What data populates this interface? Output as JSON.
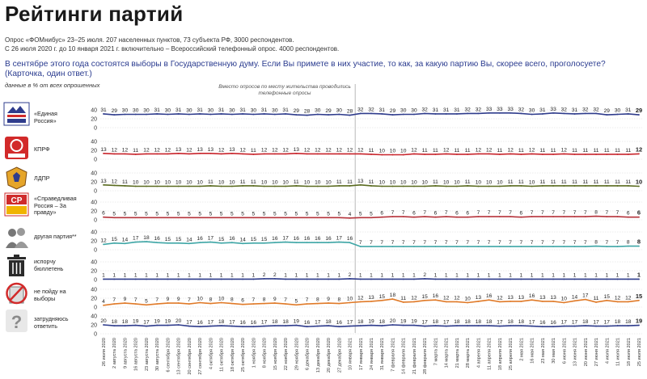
{
  "header": {
    "title": "Рейтинги партий",
    "sub1": "Опрос «ФОМнибус» 23–25 июля. 207 населенных пунктов, 73 субъекта РФ, 3000 респондентов.",
    "sub2": "С 26 июля 2020 г. до 10 января 2021 г. включительно – Всероссийский телефонный опрос. 4000 респондентов.",
    "question": "В сентябре этого года состоятся выборы в Государственную думу. Если Вы примете в них участие, то как, за какую партию Вы, скорее всего, проголосуете? (Карточка, один ответ.)",
    "unit_note": "данные в % от всех опрошенных",
    "method_note": "Вместо опросов по месту жительства проводились телефонные опросы"
  },
  "parties": [
    {
      "label": "«Единая Россия»",
      "icon": "united-russia-logo-icon"
    },
    {
      "label": "КПРФ",
      "icon": "kprf-logo-icon"
    },
    {
      "label": "ЛДПР",
      "icon": "ldpr-logo-icon"
    },
    {
      "label": "«Справедливая Россия – За правду»",
      "icon": "just-russia-logo-icon"
    },
    {
      "label": "другая партия**",
      "icon": "people-icon"
    },
    {
      "label": "испорчу бюллетень",
      "icon": "trash-bin-icon"
    },
    {
      "label": "не пойду на выборы",
      "icon": "no-voting-icon"
    },
    {
      "label": "затрудняюсь ответить",
      "icon": "question-icon"
    }
  ],
  "chart_data": {
    "type": "line",
    "y_ticks": [
      0,
      20,
      40
    ],
    "ylim": [
      0,
      40
    ],
    "x": [
      "26 июля 2020",
      "2 августа 2020",
      "9 августа 2020",
      "16 августа 2020",
      "23 августа 2020",
      "30 августа 2020",
      "6 сентября 2020",
      "13 сентября 2020",
      "20 сентября 2020",
      "27 сентября 2020",
      "4 октября 2020",
      "11 октября 2020",
      "18 октября 2020",
      "25 октября 2020",
      "1 ноября 2020",
      "8 ноября 2020",
      "15 ноября 2020",
      "22 ноября 2020",
      "29 ноября 2020",
      "6 декабря 2020",
      "13 декабря 2020",
      "20 декабря 2020",
      "27 декабря 2020",
      "10 января 2021",
      "17 января 2021",
      "24 января 2021",
      "31 января 2021",
      "7 февраля 2021",
      "14 февраля 2021",
      "21 февраля 2021",
      "28 февраля 2021",
      "7 марта 2021",
      "14 марта 2021",
      "21 марта 2021",
      "28 марта 2021",
      "4 апреля 2021",
      "11 апреля 2021",
      "18 апреля 2021",
      "25 апреля 2021",
      "2 мая 2021",
      "16 мая 2021",
      "23 мая 2021",
      "30 мая 2021",
      "6 июня 2021",
      "13 июня 2021",
      "20 июня 2021",
      "27 июня 2021",
      "4 июля 2021",
      "11 июля 2021",
      "18 июля 2021",
      "25 июля 2021"
    ],
    "series": [
      {
        "name": "«Единая Россия»",
        "color": "#2f3c8c",
        "values": [
          31,
          29,
          30,
          30,
          30,
          31,
          30,
          31,
          30,
          31,
          30,
          31,
          30,
          31,
          30,
          31,
          30,
          31,
          29,
          28,
          30,
          29,
          30,
          28,
          32,
          32,
          31,
          29,
          30,
          30,
          32,
          31,
          31,
          31,
          32,
          32,
          33,
          33,
          33,
          32,
          30,
          31,
          33,
          32,
          31,
          32,
          32,
          29,
          30,
          31,
          29
        ]
      },
      {
        "name": "КПРФ",
        "color": "#c8242b",
        "values": [
          13,
          12,
          12,
          11,
          12,
          12,
          12,
          13,
          12,
          13,
          13,
          12,
          13,
          12,
          11,
          12,
          12,
          12,
          13,
          12,
          12,
          12,
          12,
          12,
          12,
          11,
          10,
          10,
          10,
          12,
          11,
          11,
          12,
          11,
          11,
          12,
          12,
          11,
          12,
          11,
          12,
          11,
          11,
          12,
          11,
          11,
          11,
          11,
          11,
          11,
          12
        ]
      },
      {
        "name": "ЛДПР",
        "color": "#5a6b1f",
        "values": [
          13,
          12,
          11,
          10,
          10,
          10,
          10,
          10,
          10,
          10,
          11,
          10,
          10,
          11,
          11,
          10,
          10,
          10,
          11,
          10,
          10,
          10,
          11,
          11,
          13,
          11,
          10,
          10,
          10,
          10,
          10,
          11,
          10,
          10,
          11,
          10,
          10,
          10,
          11,
          11,
          10,
          11,
          11,
          11,
          11,
          11,
          11,
          11,
          11,
          11,
          10
        ]
      },
      {
        "name": "«Справедливая Россия – За правду»",
        "color": "#b5323a",
        "values": [
          6,
          5,
          5,
          5,
          5,
          5,
          5,
          5,
          5,
          5,
          5,
          5,
          5,
          5,
          5,
          5,
          5,
          5,
          5,
          5,
          5,
          5,
          5,
          4,
          5,
          5,
          6,
          7,
          7,
          6,
          7,
          6,
          7,
          6,
          6,
          7,
          7,
          7,
          7,
          6,
          7,
          7,
          7,
          7,
          7,
          7,
          8,
          7,
          7,
          6,
          6
        ]
      },
      {
        "name": "другая партия**",
        "color": "#3fa6a6",
        "values": [
          12,
          15,
          14,
          17,
          18,
          16,
          15,
          15,
          14,
          16,
          17,
          15,
          16,
          14,
          15,
          15,
          16,
          17,
          16,
          16,
          16,
          16,
          17,
          16,
          7,
          7,
          7,
          7,
          7,
          7,
          7,
          7,
          7,
          7,
          7,
          7,
          7,
          7,
          7,
          7,
          7,
          7,
          7,
          7,
          7,
          7,
          8,
          7,
          7,
          8,
          8
        ]
      },
      {
        "name": "испорчу бюллетень",
        "color": "#2f3c8c",
        "values": [
          1,
          1,
          1,
          1,
          1,
          1,
          1,
          1,
          1,
          1,
          1,
          1,
          1,
          1,
          1,
          2,
          2,
          1,
          1,
          1,
          1,
          1,
          1,
          2,
          1,
          1,
          1,
          1,
          1,
          1,
          2,
          1,
          1,
          1,
          1,
          1,
          1,
          1,
          1,
          1,
          1,
          1,
          1,
          1,
          1,
          1,
          1,
          1,
          1,
          1,
          1
        ]
      },
      {
        "name": "не пойду на выборы",
        "color": "#e07a28",
        "values": [
          4,
          7,
          9,
          7,
          5,
          7,
          9,
          9,
          7,
          10,
          8,
          10,
          8,
          6,
          7,
          8,
          9,
          7,
          5,
          7,
          8,
          9,
          8,
          10,
          12,
          13,
          15,
          18,
          11,
          12,
          15,
          16,
          12,
          12,
          10,
          13,
          16,
          12,
          13,
          13,
          16,
          13,
          13,
          10,
          14,
          17,
          11,
          15,
          12,
          12,
          15
        ]
      },
      {
        "name": "затрудняюсь ответить",
        "color": "#2f3c8c",
        "values": [
          20,
          18,
          18,
          19,
          17,
          19,
          19,
          20,
          17,
          16,
          17,
          18,
          17,
          16,
          16,
          17,
          18,
          18,
          19,
          16,
          17,
          18,
          16,
          17,
          18,
          19,
          18,
          20,
          19,
          19,
          17,
          18,
          17,
          18,
          18,
          18,
          18,
          17,
          18,
          18,
          17,
          16,
          16,
          17,
          17,
          18,
          17,
          17,
          18,
          18,
          19
        ]
      }
    ]
  }
}
